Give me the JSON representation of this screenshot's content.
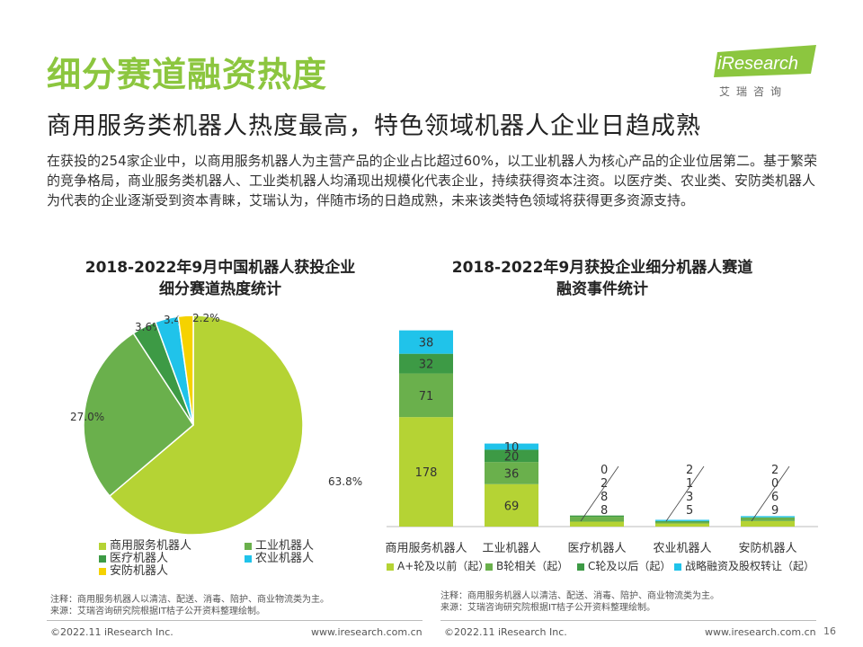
{
  "header": {
    "title": "细分赛道融资热度",
    "subtitle": "商用服务类机器人热度最高，特色领域机器人企业日趋成熟",
    "body": "在获投的254家企业中，以商用服务机器人为主营产品的企业占比超过60%，以工业机器人为核心产品的企业位居第二。基于繁荣的竞争格局，商业服务类机器人、工业类机器人均涌现出规模化代表企业，持续获得资本注资。以医疗类、农业类、安防类机器人为代表的企业逐渐受到资本青睐，艾瑞认为，伴随市场的日趋成熟，未来该类特色领域将获得更多资源支持。"
  },
  "logo": {
    "text": "iResearch",
    "cn": "艾瑞咨询"
  },
  "chart_data": [
    {
      "type": "pie",
      "title": "2018-2022年9月中国机器人获投企业细分赛道热度统计",
      "title_line1": "2018-2022年9月中国机器人获投企业",
      "title_line2": "细分赛道热度统计",
      "categories": [
        "商用服务机器人",
        "工业机器人",
        "医疗机器人",
        "农业机器人",
        "安防机器人"
      ],
      "values": [
        63.8,
        27.0,
        3.6,
        3.4,
        2.2
      ],
      "labels": [
        "63.8%",
        "27.0%",
        "3.6%",
        "3.4%",
        "2.2%"
      ],
      "colors": [
        "#b5d334",
        "#6ab04c",
        "#3d9a45",
        "#20c3ea",
        "#f5d200"
      ]
    },
    {
      "type": "bar",
      "stacked": true,
      "title": "2018-2022年9月获投企业细分机器人赛道融资事件统计",
      "title_line1": "2018-2022年9月获投企业细分机器人赛道",
      "title_line2": "融资事件统计",
      "categories": [
        "商用服务机器人",
        "工业机器人",
        "医疗机器人",
        "农业机器人",
        "安防机器人"
      ],
      "series": [
        {
          "name": "A+轮及以前（起）",
          "values": [
            178,
            69,
            8,
            5,
            9
          ],
          "color": "#b5d334"
        },
        {
          "name": "B轮相关（起）",
          "values": [
            71,
            36,
            8,
            3,
            6
          ],
          "color": "#6ab04c"
        },
        {
          "name": "C轮及以后（起）",
          "values": [
            32,
            20,
            2,
            1,
            0
          ],
          "color": "#3d9a45"
        },
        {
          "name": "战略融资及股权转让（起）",
          "values": [
            38,
            10,
            0,
            2,
            2
          ],
          "color": "#20c3ea"
        }
      ]
    }
  ],
  "notes": {
    "left_note": "注释：商用服务机器人以清洁、配送、消毒、陪护、商业物流类为主。",
    "left_source": "来源：艾瑞咨询研究院根据IT桔子公开资料整理绘制。",
    "right_note": "注释：商用服务机器人以清洁、配送、消毒、陪护、商业物流类为主。",
    "right_source": "来源：艾瑞咨询研究院根据IT桔子公开资料整理绘制。"
  },
  "footer": {
    "copyright_left": "©2022.11 iResearch Inc.",
    "url_left": "www.iresearch.com.cn",
    "copyright_right": "©2022.11 iResearch Inc.",
    "url_right": "www.iresearch.com.cn",
    "page": "16"
  }
}
